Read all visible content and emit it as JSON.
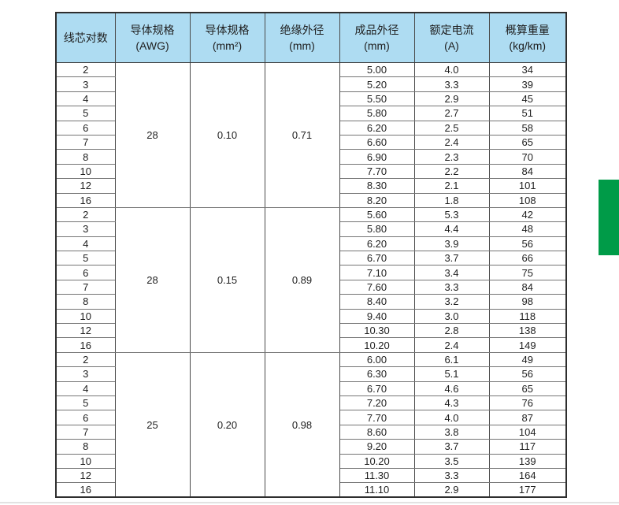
{
  "accent": {
    "green_tab_color": "#009B48",
    "header_bg": "#aedcf2"
  },
  "table": {
    "headers": [
      {
        "line1": "线芯对数",
        "line2": ""
      },
      {
        "line1": "导体规格",
        "line2": "(AWG)"
      },
      {
        "line1": "导体规格",
        "line2": "(mm²)"
      },
      {
        "line1": "绝缘外径",
        "line2": "(mm)"
      },
      {
        "line1": "成品外径",
        "line2": "(mm)"
      },
      {
        "line1": "额定电流",
        "line2": "(A)"
      },
      {
        "line1": "概算重量",
        "line2": "(kg/km)"
      }
    ],
    "groups": [
      {
        "awg": "28",
        "mm2": "0.10",
        "insulation_od": "0.71",
        "rows": [
          {
            "pairs": "2",
            "od": "5.00",
            "current": "4.0",
            "weight": "34"
          },
          {
            "pairs": "3",
            "od": "5.20",
            "current": "3.3",
            "weight": "39"
          },
          {
            "pairs": "4",
            "od": "5.50",
            "current": "2.9",
            "weight": "45"
          },
          {
            "pairs": "5",
            "od": "5.80",
            "current": "2.7",
            "weight": "51"
          },
          {
            "pairs": "6",
            "od": "6.20",
            "current": "2.5",
            "weight": "58"
          },
          {
            "pairs": "7",
            "od": "6.60",
            "current": "2.4",
            "weight": "65"
          },
          {
            "pairs": "8",
            "od": "6.90",
            "current": "2.3",
            "weight": "70"
          },
          {
            "pairs": "10",
            "od": "7.70",
            "current": "2.2",
            "weight": "84"
          },
          {
            "pairs": "12",
            "od": "8.30",
            "current": "2.1",
            "weight": "101"
          },
          {
            "pairs": "16",
            "od": "8.20",
            "current": "1.8",
            "weight": "108"
          }
        ]
      },
      {
        "awg": "28",
        "mm2": "0.15",
        "insulation_od": "0.89",
        "rows": [
          {
            "pairs": "2",
            "od": "5.60",
            "current": "5.3",
            "weight": "42"
          },
          {
            "pairs": "3",
            "od": "5.80",
            "current": "4.4",
            "weight": "48"
          },
          {
            "pairs": "4",
            "od": "6.20",
            "current": "3.9",
            "weight": "56"
          },
          {
            "pairs": "5",
            "od": "6.70",
            "current": "3.7",
            "weight": "66"
          },
          {
            "pairs": "6",
            "od": "7.10",
            "current": "3.4",
            "weight": "75"
          },
          {
            "pairs": "7",
            "od": "7.60",
            "current": "3.3",
            "weight": "84"
          },
          {
            "pairs": "8",
            "od": "8.40",
            "current": "3.2",
            "weight": "98"
          },
          {
            "pairs": "10",
            "od": "9.40",
            "current": "3.0",
            "weight": "118"
          },
          {
            "pairs": "12",
            "od": "10.30",
            "current": "2.8",
            "weight": "138"
          },
          {
            "pairs": "16",
            "od": "10.20",
            "current": "2.4",
            "weight": "149"
          }
        ]
      },
      {
        "awg": "25",
        "mm2": "0.20",
        "insulation_od": "0.98",
        "rows": [
          {
            "pairs": "2",
            "od": "6.00",
            "current": "6.1",
            "weight": "49"
          },
          {
            "pairs": "3",
            "od": "6.30",
            "current": "5.1",
            "weight": "56"
          },
          {
            "pairs": "4",
            "od": "6.70",
            "current": "4.6",
            "weight": "65"
          },
          {
            "pairs": "5",
            "od": "7.20",
            "current": "4.3",
            "weight": "76"
          },
          {
            "pairs": "6",
            "od": "7.70",
            "current": "4.0",
            "weight": "87"
          },
          {
            "pairs": "7",
            "od": "8.60",
            "current": "3.8",
            "weight": "104"
          },
          {
            "pairs": "8",
            "od": "9.20",
            "current": "3.7",
            "weight": "117"
          },
          {
            "pairs": "10",
            "od": "10.20",
            "current": "3.5",
            "weight": "139"
          },
          {
            "pairs": "12",
            "od": "11.30",
            "current": "3.3",
            "weight": "164"
          },
          {
            "pairs": "16",
            "od": "11.10",
            "current": "2.9",
            "weight": "177"
          }
        ]
      }
    ]
  }
}
